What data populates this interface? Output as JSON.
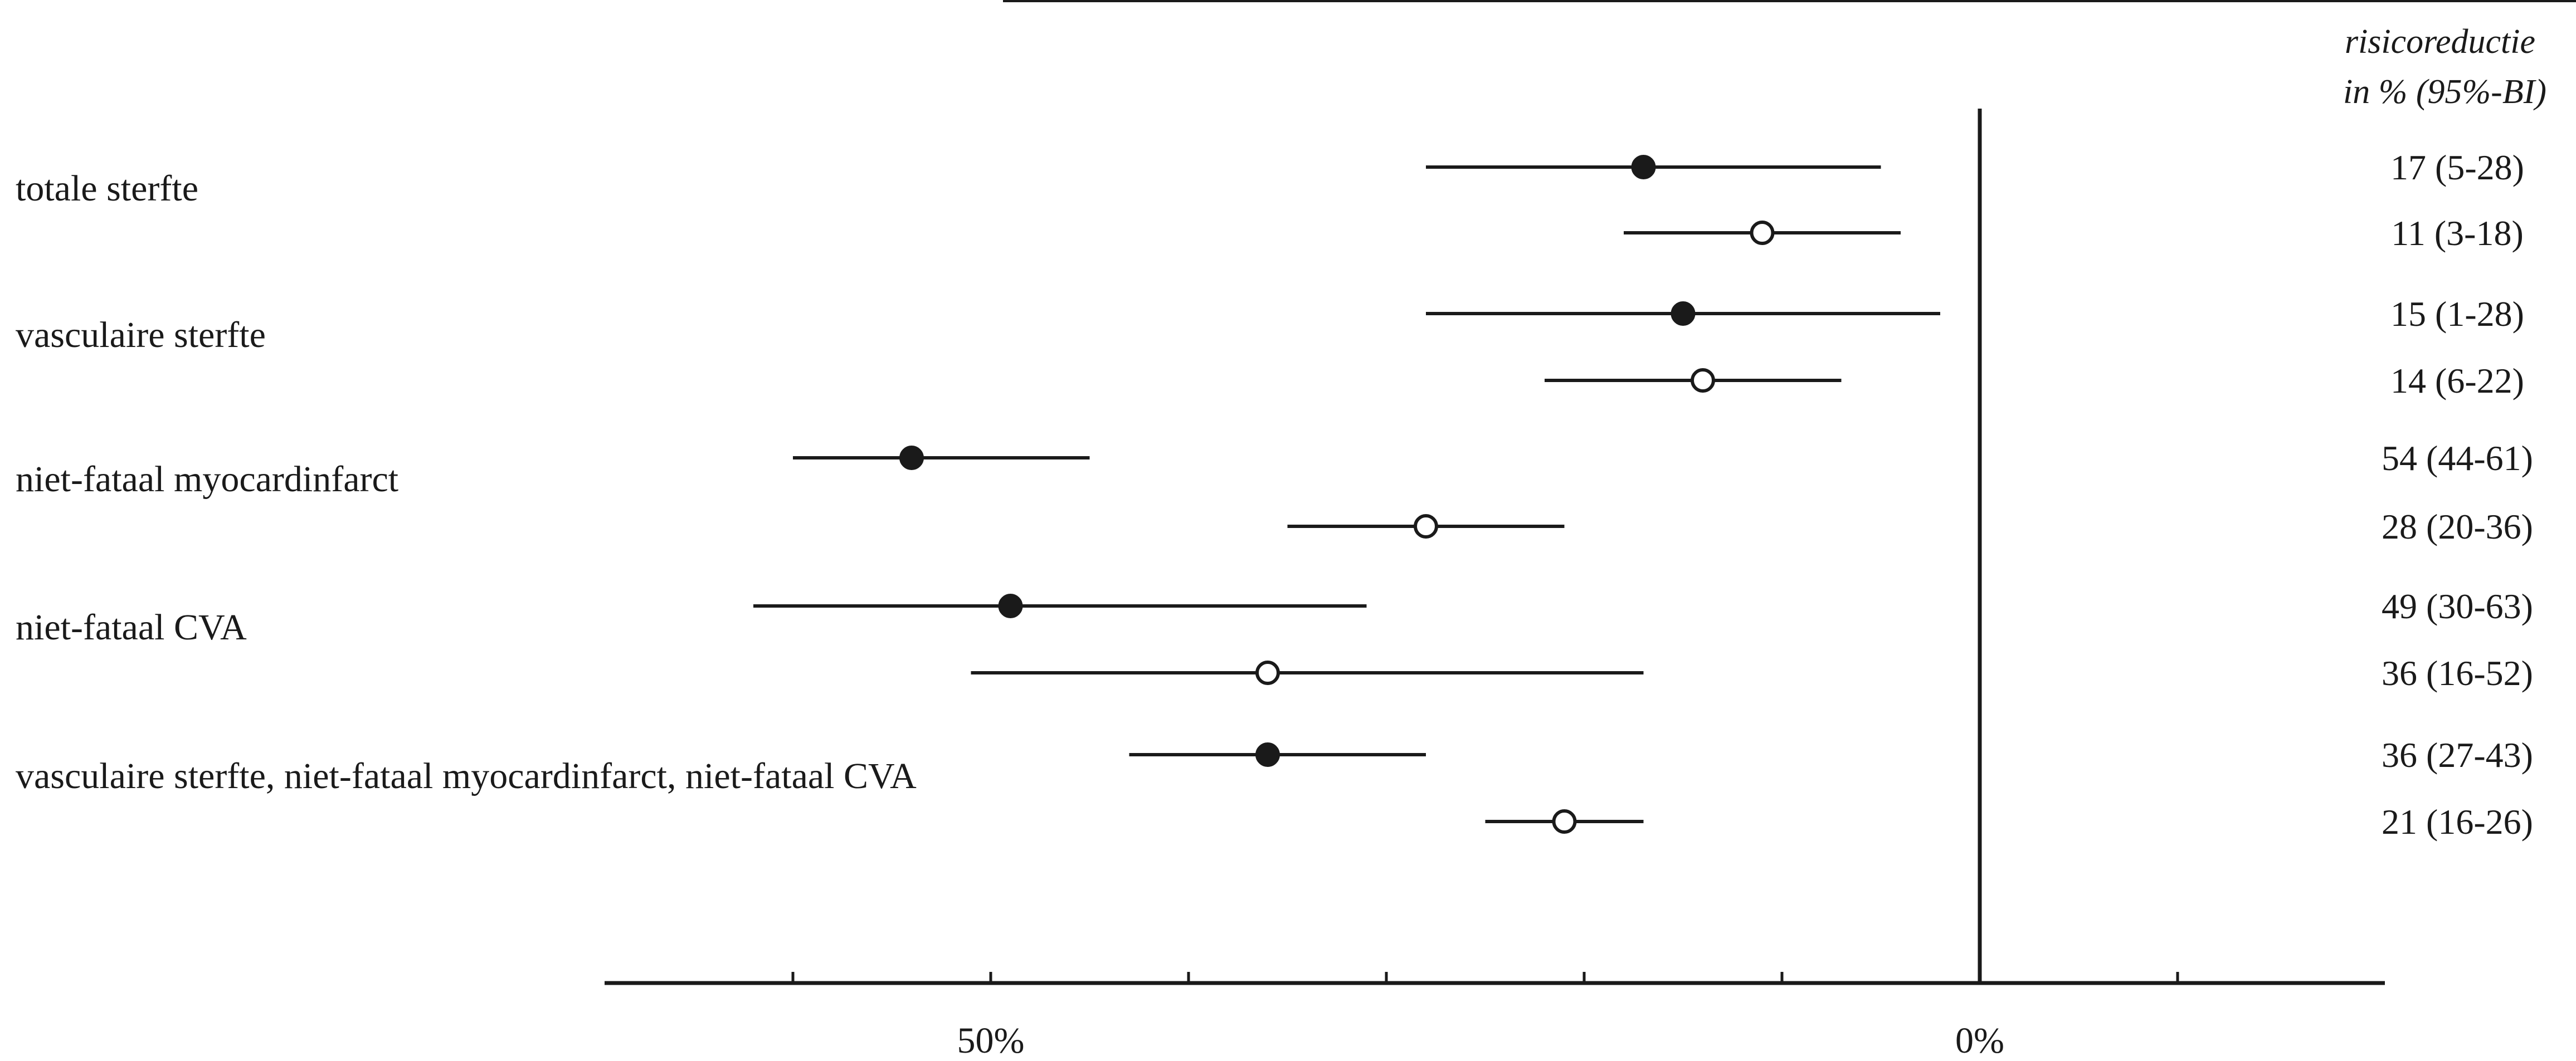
{
  "chart_data": {
    "type": "scatter",
    "title": "",
    "xlabel": "",
    "ylabel": "",
    "header": [
      "risicoreductie",
      "in % (95%-BI)"
    ],
    "xlim": [
      70,
      -20
    ],
    "xticks": [
      60,
      50,
      40,
      30,
      20,
      10,
      0,
      -10
    ],
    "xtick_labels": [
      {
        "value": 50,
        "label": "50%"
      },
      {
        "value": 0,
        "label": "0%"
      }
    ],
    "rows": [
      {
        "label": "totale sterfte",
        "estimates": [
          {
            "marker": "filled",
            "value": 17,
            "ci": [
              28,
              5
            ],
            "text": "17 (5-28)"
          },
          {
            "marker": "open",
            "value": 11,
            "ci": [
              18,
              4
            ],
            "text": "11 (3-18)"
          }
        ]
      },
      {
        "label": "vasculaire sterfte",
        "estimates": [
          {
            "marker": "filled",
            "value": 15,
            "ci": [
              28,
              2
            ],
            "text": "15 (1-28)"
          },
          {
            "marker": "open",
            "value": 14,
            "ci": [
              22,
              7
            ],
            "text": "14 (6-22)"
          }
        ]
      },
      {
        "label": "niet-fataal myocardinfarct",
        "estimates": [
          {
            "marker": "filled",
            "value": 54,
            "ci": [
              60,
              45
            ],
            "text": "54 (44-61)"
          },
          {
            "marker": "open",
            "value": 28,
            "ci": [
              35,
              21
            ],
            "text": "28 (20-36)"
          }
        ]
      },
      {
        "label": "niet-fataal CVA",
        "estimates": [
          {
            "marker": "filled",
            "value": 49,
            "ci": [
              62,
              31
            ],
            "text": "49 (30-63)"
          },
          {
            "marker": "open",
            "value": 36,
            "ci": [
              51,
              17
            ],
            "text": "36 (16-52)"
          }
        ]
      },
      {
        "label": "vasculaire sterfte, niet-fataal myocardinfarct, niet-fataal CVA",
        "estimates": [
          {
            "marker": "filled",
            "value": 36,
            "ci": [
              43,
              28
            ],
            "text": "36 (27-43)"
          },
          {
            "marker": "open",
            "value": 21,
            "ci": [
              25,
              17
            ],
            "text": "21 (16-26)"
          }
        ]
      }
    ],
    "colors": {
      "ink": "#1a1a1a",
      "background": "#ffffff"
    }
  }
}
